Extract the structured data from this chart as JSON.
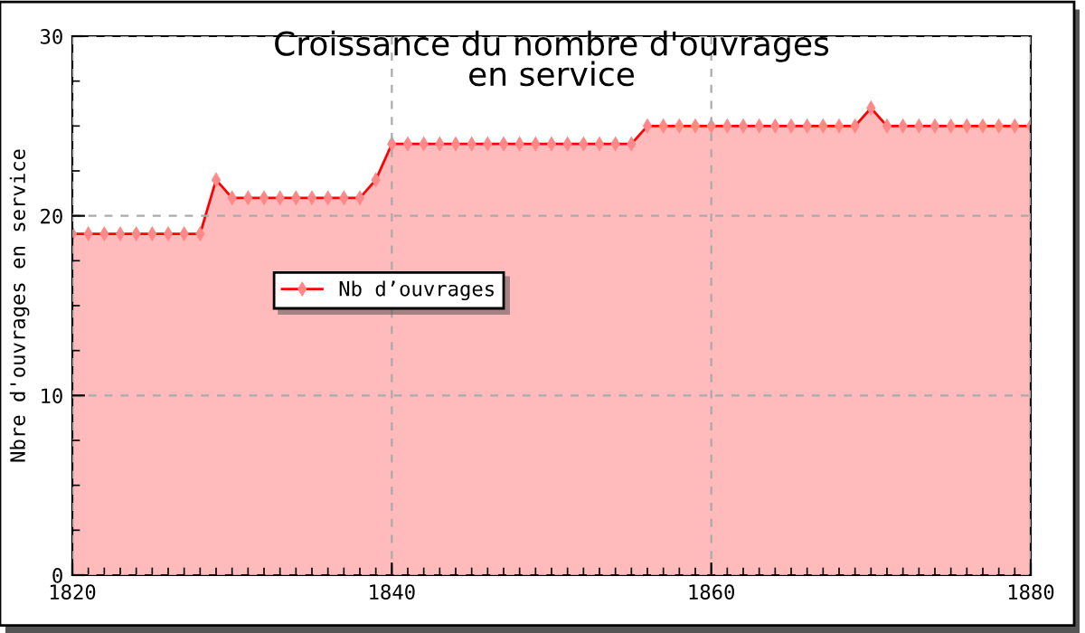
{
  "chart_data": {
    "type": "area",
    "title": "Croissance du nombre d'ouvrages\nen service",
    "ylabel": "Nbre d'ouvrages en service",
    "x": [
      1820,
      1821,
      1822,
      1823,
      1824,
      1825,
      1826,
      1827,
      1828,
      1829,
      1830,
      1831,
      1832,
      1833,
      1834,
      1835,
      1836,
      1837,
      1838,
      1839,
      1840,
      1841,
      1842,
      1843,
      1844,
      1845,
      1846,
      1847,
      1848,
      1849,
      1850,
      1851,
      1852,
      1853,
      1854,
      1855,
      1856,
      1857,
      1858,
      1859,
      1860,
      1861,
      1862,
      1863,
      1864,
      1865,
      1866,
      1867,
      1868,
      1869,
      1870,
      1871,
      1872,
      1873,
      1874,
      1875,
      1876,
      1877,
      1878,
      1879,
      1880
    ],
    "series": [
      {
        "name": "Nb d’ouvrages",
        "color": "#ff0000",
        "values": [
          19,
          19,
          19,
          19,
          19,
          19,
          19,
          19,
          19,
          22,
          21,
          21,
          21,
          21,
          21,
          21,
          21,
          21,
          21,
          22,
          24,
          24,
          24,
          24,
          24,
          24,
          24,
          24,
          24,
          24,
          24,
          24,
          24,
          24,
          24,
          24,
          25,
          25,
          25,
          25,
          25,
          25,
          25,
          25,
          25,
          25,
          25,
          25,
          25,
          25,
          26,
          25,
          25,
          25,
          25,
          25,
          25,
          25,
          25,
          25,
          25
        ]
      }
    ],
    "xlim": [
      1820,
      1880
    ],
    "xticks": [
      1820,
      1840,
      1860,
      1880
    ],
    "ylim": [
      0,
      30
    ],
    "yticks": [
      0,
      10,
      20,
      30
    ],
    "grid": true,
    "legend": "top left",
    "marker": "diamond",
    "line_style": "solid"
  }
}
